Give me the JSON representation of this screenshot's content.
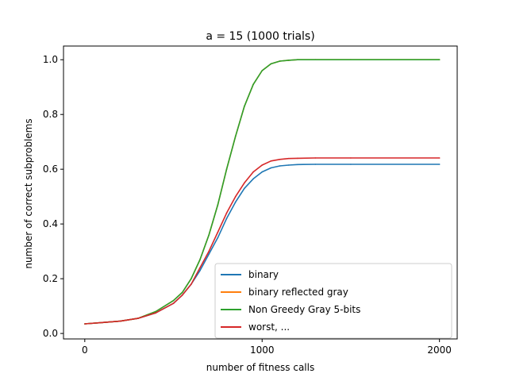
{
  "chart_data": {
    "type": "line",
    "title": "a = 15 (1000 trials)",
    "xlabel": "number of fitness calls",
    "ylabel": "number of correct subproblems",
    "xlim": [
      -120,
      2100
    ],
    "ylim": [
      -0.02,
      1.05
    ],
    "xticks": [
      0,
      1000,
      2000
    ],
    "xtick_labels": [
      "0",
      "1000",
      "2000"
    ],
    "yticks": [
      0.0,
      0.2,
      0.4,
      0.6,
      0.8,
      1.0
    ],
    "ytick_labels": [
      "0.0",
      "0.2",
      "0.4",
      "0.6",
      "0.8",
      "1.0"
    ],
    "grid": false,
    "legend_position": "bottom-right",
    "series": [
      {
        "name": "binary",
        "color": "#1f77b4",
        "x": [
          0,
          100,
          200,
          300,
          400,
          500,
          550,
          600,
          650,
          700,
          750,
          800,
          850,
          900,
          950,
          1000,
          1050,
          1100,
          1150,
          1200,
          1300,
          1500,
          2000
        ],
        "y": [
          0.035,
          0.04,
          0.045,
          0.055,
          0.075,
          0.11,
          0.14,
          0.18,
          0.23,
          0.29,
          0.35,
          0.42,
          0.48,
          0.53,
          0.565,
          0.59,
          0.605,
          0.612,
          0.615,
          0.617,
          0.618,
          0.618,
          0.618
        ]
      },
      {
        "name": "binary reflected gray",
        "color": "#ff7f0e",
        "x": [
          0,
          100,
          200,
          300,
          400,
          500,
          550,
          600,
          650,
          700,
          750,
          800,
          850,
          900,
          950,
          1000,
          1050,
          1100,
          1150,
          1200,
          1300,
          1500,
          2000
        ],
        "y": [
          0.035,
          0.04,
          0.045,
          0.055,
          0.08,
          0.12,
          0.15,
          0.2,
          0.27,
          0.36,
          0.47,
          0.6,
          0.72,
          0.83,
          0.91,
          0.96,
          0.985,
          0.995,
          0.998,
          1.0,
          1.0,
          1.0,
          1.0
        ]
      },
      {
        "name": "Non Greedy Gray 5-bits",
        "color": "#2ca02c",
        "x": [
          0,
          100,
          200,
          300,
          400,
          500,
          550,
          600,
          650,
          700,
          750,
          800,
          850,
          900,
          950,
          1000,
          1050,
          1100,
          1150,
          1200,
          1300,
          1500,
          2000
        ],
        "y": [
          0.035,
          0.04,
          0.045,
          0.055,
          0.08,
          0.12,
          0.15,
          0.2,
          0.27,
          0.36,
          0.47,
          0.6,
          0.72,
          0.83,
          0.91,
          0.96,
          0.985,
          0.995,
          0.998,
          1.0,
          1.0,
          1.0,
          1.0
        ]
      },
      {
        "name": "worst, ...",
        "color": "#d62728",
        "x": [
          0,
          100,
          200,
          300,
          400,
          500,
          550,
          600,
          650,
          700,
          750,
          800,
          850,
          900,
          950,
          1000,
          1050,
          1100,
          1150,
          1200,
          1300,
          1500,
          2000
        ],
        "y": [
          0.035,
          0.04,
          0.045,
          0.055,
          0.075,
          0.11,
          0.14,
          0.18,
          0.24,
          0.3,
          0.37,
          0.44,
          0.5,
          0.55,
          0.59,
          0.615,
          0.63,
          0.636,
          0.639,
          0.64,
          0.641,
          0.641,
          0.641
        ]
      }
    ]
  }
}
